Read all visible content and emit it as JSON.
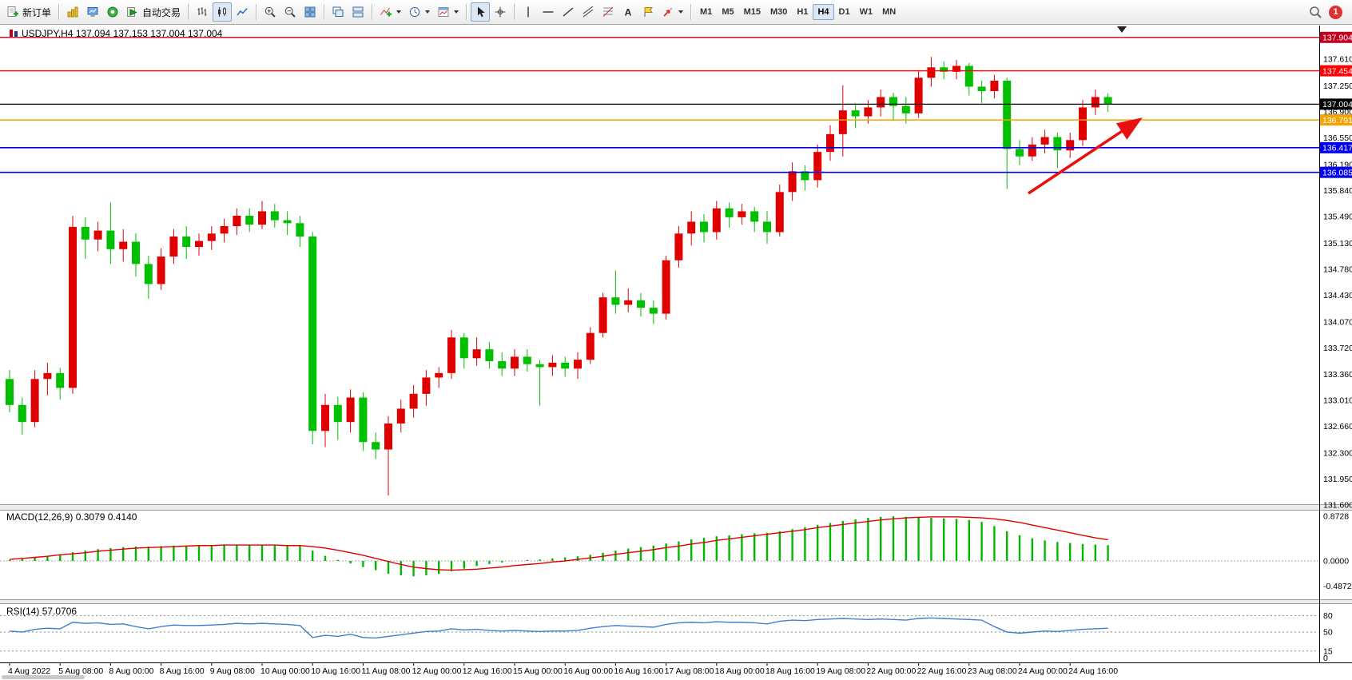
{
  "toolbar": {
    "new_order": "新订单",
    "autotrade": "自动交易",
    "timeframes": [
      "M1",
      "M5",
      "M15",
      "M30",
      "H1",
      "H4",
      "D1",
      "W1",
      "MN"
    ],
    "active_timeframe": "H4",
    "notification_count": "1"
  },
  "chart_data": [
    {
      "type": "candlestick",
      "title": "USDJPY,H4",
      "ohlc_label": "137.094 137.153 137.004 137.004",
      "ylim": [
        131.6,
        138.02
      ],
      "y_ticks": [
        137.61,
        137.25,
        136.9,
        136.55,
        136.19,
        135.84,
        135.49,
        135.13,
        134.78,
        134.43,
        134.07,
        133.72,
        133.36,
        133.01,
        132.66,
        132.3,
        131.95,
        131.6
      ],
      "hlines": [
        {
          "price": 137.904,
          "color": "#c00020",
          "width": 1.4
        },
        {
          "price": 137.454,
          "color": "#ff0000",
          "width": 1.4
        },
        {
          "price": 137.004,
          "color": "#000000",
          "width": 1.2
        },
        {
          "price": 136.791,
          "color": "#f5a300",
          "width": 1.6
        },
        {
          "price": 136.417,
          "color": "#0000ee",
          "width": 1.6
        },
        {
          "price": 136.085,
          "color": "#0000ee",
          "width": 1.6
        }
      ],
      "colors": {
        "bull": "#e00000",
        "bear": "#00c000"
      },
      "x_label_every": 4,
      "x_labels": [
        "4 Aug 2022",
        "5 Aug 08:00",
        "8 Aug 00:00",
        "8 Aug 16:00",
        "9 Aug 08:00",
        "10 Aug 00:00",
        "10 Aug 16:00",
        "11 Aug 08:00",
        "12 Aug 00:00",
        "12 Aug 16:00",
        "15 Aug 00:00",
        "16 Aug 00:00",
        "16 Aug 16:00",
        "17 Aug 08:00",
        "18 Aug 00:00",
        "18 Aug 16:00",
        "19 Aug 08:00",
        "22 Aug 00:00",
        "22 Aug 16:00",
        "23 Aug 08:00",
        "24 Aug 00:00",
        "24 Aug 16:00"
      ],
      "candles": [
        [
          133.3,
          133.42,
          132.85,
          132.95
        ],
        [
          132.95,
          133.05,
          132.55,
          132.72
        ],
        [
          132.72,
          133.42,
          132.65,
          133.3
        ],
        [
          133.3,
          133.52,
          133.08,
          133.38
        ],
        [
          133.38,
          133.45,
          133.02,
          133.18
        ],
        [
          133.18,
          135.5,
          133.1,
          135.35
        ],
        [
          135.35,
          135.48,
          134.92,
          135.18
        ],
        [
          135.18,
          135.42,
          135.02,
          135.3
        ],
        [
          135.3,
          135.68,
          134.85,
          135.05
        ],
        [
          135.05,
          135.32,
          134.88,
          135.15
        ],
        [
          135.15,
          135.26,
          134.68,
          134.85
        ],
        [
          134.85,
          134.96,
          134.38,
          134.58
        ],
        [
          134.58,
          135.06,
          134.5,
          134.95
        ],
        [
          134.95,
          135.32,
          134.85,
          135.22
        ],
        [
          135.22,
          135.36,
          134.92,
          135.08
        ],
        [
          135.08,
          135.26,
          134.96,
          135.16
        ],
        [
          135.16,
          135.36,
          135.04,
          135.26
        ],
        [
          135.26,
          135.46,
          135.14,
          135.36
        ],
        [
          135.36,
          135.6,
          135.24,
          135.5
        ],
        [
          135.5,
          135.6,
          135.28,
          135.38
        ],
        [
          135.38,
          135.7,
          135.32,
          135.56
        ],
        [
          135.56,
          135.66,
          135.34,
          135.44
        ],
        [
          135.44,
          135.56,
          135.24,
          135.4
        ],
        [
          135.4,
          135.5,
          135.08,
          135.22
        ],
        [
          135.22,
          135.28,
          132.42,
          132.6
        ],
        [
          132.6,
          133.1,
          132.38,
          132.95
        ],
        [
          132.95,
          133.06,
          132.48,
          132.72
        ],
        [
          132.72,
          133.16,
          132.58,
          133.05
        ],
        [
          133.05,
          133.12,
          132.33,
          132.45
        ],
        [
          132.45,
          132.58,
          132.22,
          132.35
        ],
        [
          132.35,
          132.8,
          131.73,
          132.7
        ],
        [
          132.7,
          133.02,
          132.58,
          132.9
        ],
        [
          132.9,
          133.22,
          132.78,
          133.1
        ],
        [
          133.1,
          133.42,
          132.94,
          133.32
        ],
        [
          133.32,
          133.46,
          133.18,
          133.38
        ],
        [
          133.38,
          133.96,
          133.3,
          133.86
        ],
        [
          133.86,
          133.92,
          133.44,
          133.58
        ],
        [
          133.58,
          133.86,
          133.48,
          133.7
        ],
        [
          133.7,
          133.8,
          133.44,
          133.54
        ],
        [
          133.54,
          133.66,
          133.34,
          133.44
        ],
        [
          133.44,
          133.7,
          133.34,
          133.6
        ],
        [
          133.6,
          133.7,
          133.4,
          133.5
        ],
        [
          133.5,
          133.56,
          132.94,
          133.46
        ],
        [
          133.46,
          133.62,
          133.34,
          133.52
        ],
        [
          133.52,
          133.6,
          133.33,
          133.44
        ],
        [
          133.44,
          133.66,
          133.3,
          133.56
        ],
        [
          133.56,
          134.0,
          133.5,
          133.92
        ],
        [
          133.92,
          134.46,
          133.86,
          134.4
        ],
        [
          134.4,
          134.76,
          134.18,
          134.3
        ],
        [
          134.3,
          134.52,
          134.2,
          134.36
        ],
        [
          134.36,
          134.46,
          134.14,
          134.26
        ],
        [
          134.26,
          134.36,
          134.04,
          134.18
        ],
        [
          134.18,
          134.96,
          134.1,
          134.9
        ],
        [
          134.9,
          135.36,
          134.8,
          135.26
        ],
        [
          135.26,
          135.56,
          135.1,
          135.42
        ],
        [
          135.42,
          135.52,
          135.14,
          135.28
        ],
        [
          135.28,
          135.7,
          135.18,
          135.6
        ],
        [
          135.6,
          135.68,
          135.34,
          135.48
        ],
        [
          135.48,
          135.66,
          135.38,
          135.56
        ],
        [
          135.56,
          135.62,
          135.28,
          135.42
        ],
        [
          135.42,
          135.56,
          135.12,
          135.28
        ],
        [
          135.28,
          135.92,
          135.22,
          135.82
        ],
        [
          135.82,
          136.22,
          135.7,
          136.1
        ],
        [
          136.1,
          136.18,
          135.84,
          135.98
        ],
        [
          135.98,
          136.46,
          135.88,
          136.36
        ],
        [
          136.36,
          136.72,
          136.24,
          136.6
        ],
        [
          136.6,
          137.26,
          136.3,
          136.92
        ],
        [
          136.92,
          137.02,
          136.68,
          136.84
        ],
        [
          136.84,
          137.06,
          136.74,
          136.96
        ],
        [
          136.96,
          137.2,
          136.84,
          137.1
        ],
        [
          137.1,
          137.16,
          136.78,
          136.98
        ],
        [
          136.98,
          137.1,
          136.74,
          136.88
        ],
        [
          136.88,
          137.46,
          136.82,
          137.36
        ],
        [
          137.36,
          137.64,
          137.24,
          137.5
        ],
        [
          137.5,
          137.58,
          137.34,
          137.44
        ],
        [
          137.44,
          137.6,
          137.34,
          137.52
        ],
        [
          137.52,
          137.56,
          137.12,
          137.24
        ],
        [
          137.24,
          137.32,
          137.02,
          137.18
        ],
        [
          137.18,
          137.4,
          137.08,
          137.32
        ],
        [
          137.32,
          137.36,
          135.86,
          136.4
        ],
        [
          136.4,
          136.52,
          136.18,
          136.3
        ],
        [
          136.3,
          136.56,
          136.24,
          136.46
        ],
        [
          136.46,
          136.66,
          136.34,
          136.56
        ],
        [
          136.56,
          136.62,
          136.14,
          136.38
        ],
        [
          136.38,
          136.62,
          136.28,
          136.52
        ],
        [
          136.52,
          137.06,
          136.44,
          136.96
        ],
        [
          136.96,
          137.2,
          136.86,
          137.1
        ],
        [
          137.1,
          137.15,
          136.9,
          137.004
        ]
      ]
    },
    {
      "type": "macd",
      "label": "MACD(12,26,9)",
      "values_label": "0.3079 0.4140",
      "y_ticks": [
        0.8728,
        0,
        -0.4872
      ],
      "colors": {
        "histogram": "#00b800",
        "signal": "#e00000"
      },
      "histogram": [
        0.02,
        0.04,
        0.07,
        0.1,
        0.13,
        0.17,
        0.2,
        0.23,
        0.25,
        0.27,
        0.28,
        0.28,
        0.29,
        0.3,
        0.3,
        0.31,
        0.31,
        0.32,
        0.32,
        0.31,
        0.31,
        0.3,
        0.3,
        0.29,
        0.2,
        0.1,
        0.02,
        -0.05,
        -0.12,
        -0.18,
        -0.25,
        -0.28,
        -0.3,
        -0.28,
        -0.25,
        -0.2,
        -0.15,
        -0.1,
        -0.06,
        -0.03,
        0.0,
        0.02,
        0.03,
        0.05,
        0.07,
        0.09,
        0.12,
        0.16,
        0.2,
        0.24,
        0.27,
        0.3,
        0.34,
        0.38,
        0.42,
        0.45,
        0.48,
        0.5,
        0.52,
        0.54,
        0.55,
        0.58,
        0.62,
        0.66,
        0.7,
        0.74,
        0.78,
        0.81,
        0.84,
        0.86,
        0.87,
        0.86,
        0.85,
        0.84,
        0.83,
        0.82,
        0.8,
        0.76,
        0.68,
        0.58,
        0.5,
        0.44,
        0.4,
        0.37,
        0.35,
        0.33,
        0.32,
        0.3079
      ],
      "signal": [
        0.03,
        0.05,
        0.07,
        0.09,
        0.12,
        0.14,
        0.16,
        0.19,
        0.21,
        0.23,
        0.25,
        0.26,
        0.27,
        0.28,
        0.29,
        0.3,
        0.3,
        0.31,
        0.31,
        0.31,
        0.31,
        0.31,
        0.3,
        0.3,
        0.28,
        0.25,
        0.21,
        0.16,
        0.11,
        0.05,
        -0.01,
        -0.07,
        -0.12,
        -0.15,
        -0.17,
        -0.18,
        -0.17,
        -0.16,
        -0.14,
        -0.12,
        -0.09,
        -0.07,
        -0.05,
        -0.02,
        0.0,
        0.03,
        0.06,
        0.09,
        0.13,
        0.16,
        0.19,
        0.22,
        0.26,
        0.29,
        0.33,
        0.36,
        0.4,
        0.43,
        0.46,
        0.49,
        0.52,
        0.55,
        0.58,
        0.61,
        0.65,
        0.68,
        0.71,
        0.74,
        0.77,
        0.8,
        0.82,
        0.84,
        0.85,
        0.86,
        0.86,
        0.86,
        0.85,
        0.84,
        0.82,
        0.79,
        0.75,
        0.7,
        0.65,
        0.6,
        0.55,
        0.5,
        0.45,
        0.414
      ]
    },
    {
      "type": "line",
      "label": "RSI(14)",
      "value_label": "57.0706",
      "levels": [
        80,
        50,
        15
      ],
      "bottom_label": "0",
      "colors": {
        "line": "#3f7fce"
      },
      "values": [
        52,
        50,
        55,
        57,
        56,
        68,
        66,
        67,
        64,
        65,
        60,
        56,
        60,
        63,
        62,
        62,
        63,
        64,
        66,
        65,
        66,
        65,
        64,
        62,
        40,
        44,
        42,
        46,
        40,
        39,
        42,
        45,
        48,
        51,
        52,
        56,
        54,
        55,
        53,
        52,
        53,
        52,
        51,
        52,
        52,
        53,
        57,
        60,
        62,
        61,
        60,
        59,
        64,
        67,
        68,
        67,
        69,
        68,
        68,
        67,
        65,
        70,
        72,
        71,
        73,
        74,
        75,
        74,
        73,
        74,
        73,
        72,
        75,
        76,
        75,
        74,
        73,
        72,
        60,
        50,
        48,
        50,
        52,
        51,
        53,
        55,
        56,
        57.07
      ]
    }
  ],
  "annotation": {
    "color": "#e81010"
  }
}
